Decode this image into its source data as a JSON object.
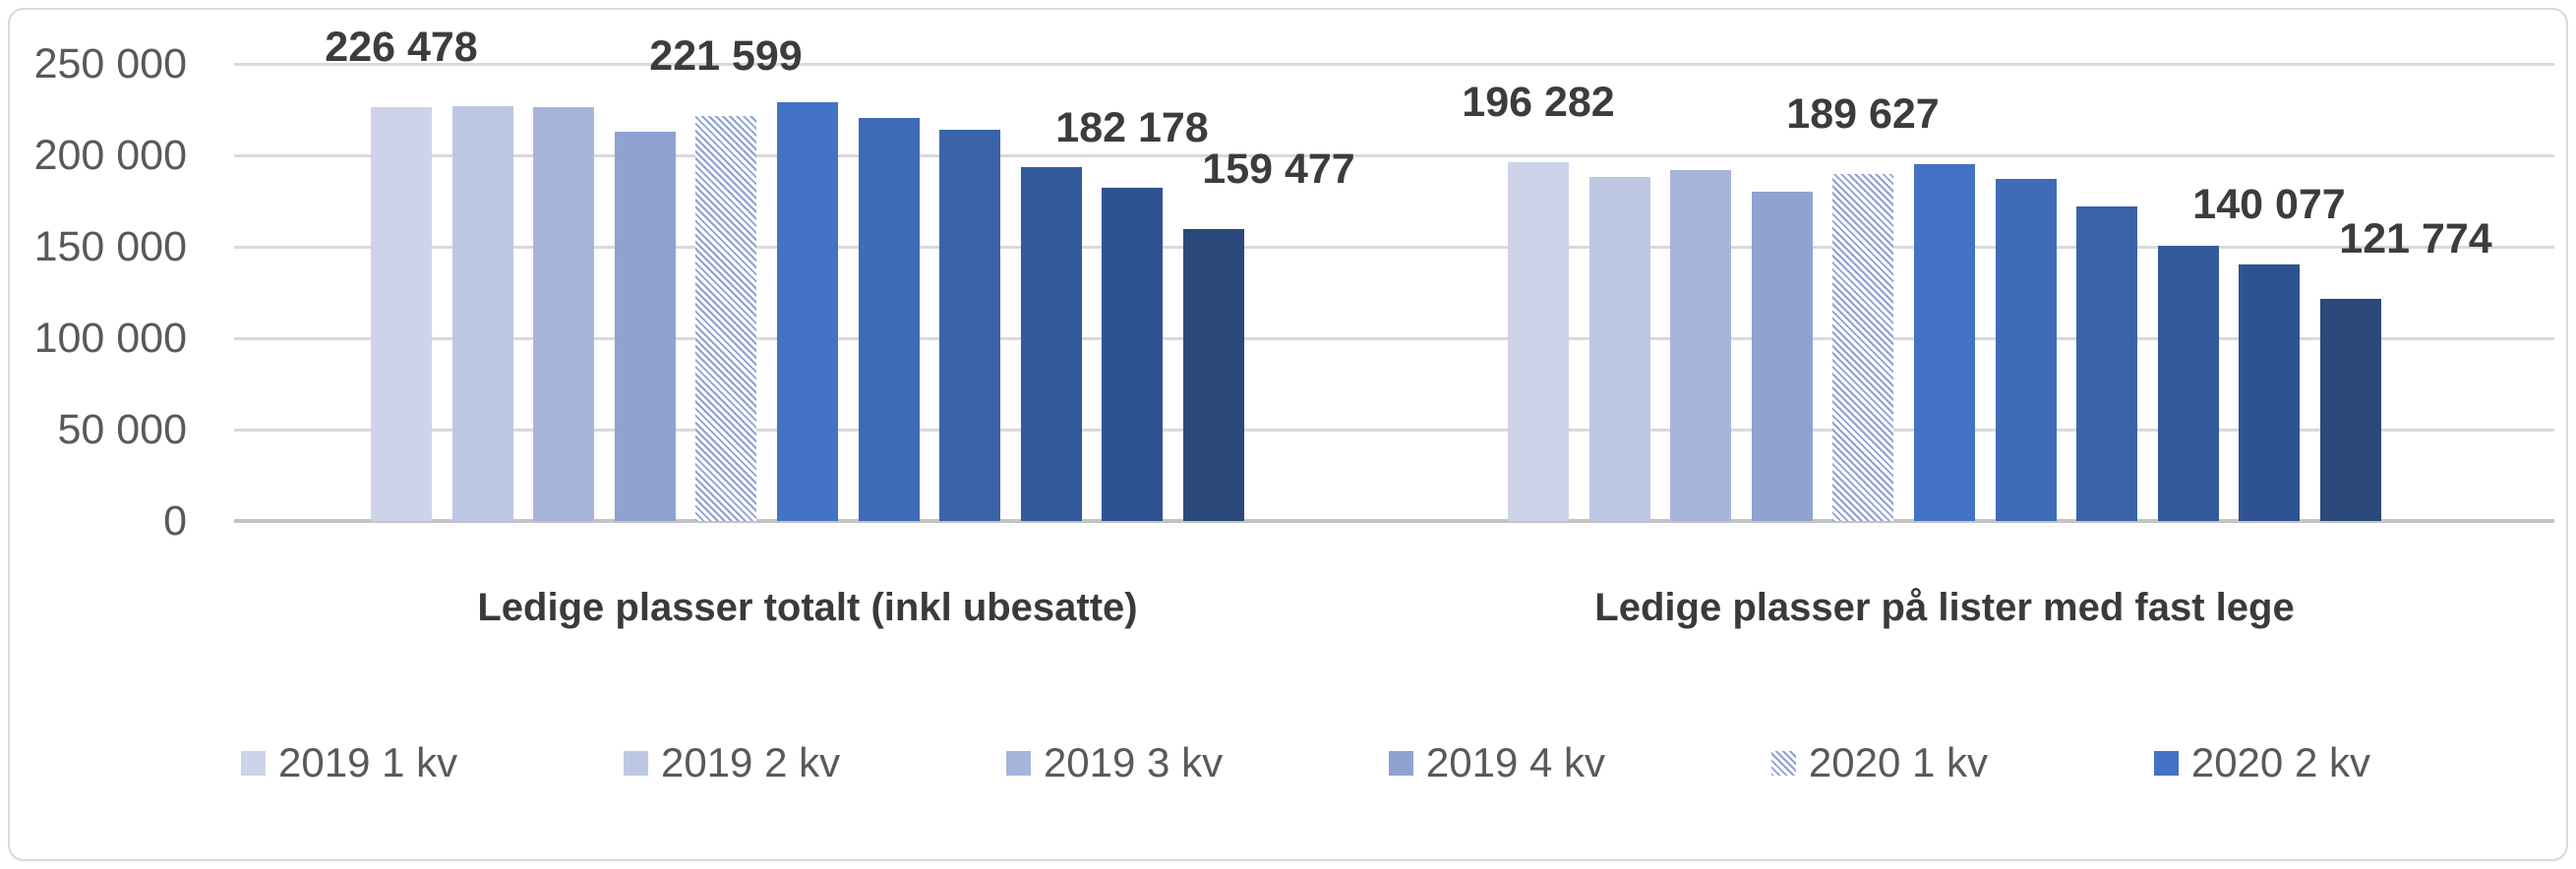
{
  "chart_style": {
    "background": "#FFFFFF",
    "border_color": "#D9D9D9",
    "grid_color": "#D9D9D9",
    "axis_line_color": "#C3C3C3",
    "axis_text_color": "#595959",
    "data_label_color": "#3C3C3C",
    "category_title_color": "#3A3A3A",
    "legend_text_color": "#595959",
    "hatch_background": "#FFFFFF"
  },
  "chart_data": {
    "type": "bar",
    "title": "",
    "xlabel": "",
    "ylabel": "",
    "ylim": [
      0,
      250000
    ],
    "grid": true,
    "y_axis": {
      "min": 0,
      "max": 250000,
      "tick_interval": 50000,
      "tick_values": [
        250000,
        200000,
        150000,
        100000,
        50000,
        0
      ],
      "tick_labels": [
        "250 000",
        "200 000",
        "150 000",
        "100 000",
        "50 000",
        "0"
      ]
    },
    "legend": {
      "position": "bottom",
      "entries": [
        {
          "label": "2019 1 kv",
          "color": "#CDD3E9",
          "pattern": "solid"
        },
        {
          "label": "2019 2 kv",
          "color": "#BDC7E4",
          "pattern": "solid"
        },
        {
          "label": "2019 3 kv",
          "color": "#A7B5DC",
          "pattern": "solid"
        },
        {
          "label": "2019 4 kv",
          "color": "#8FA2D2",
          "pattern": "solid"
        },
        {
          "label": "2020 1 kv",
          "color": "#8CA0D3",
          "pattern": "diagonal-hatch"
        },
        {
          "label": "2020 2 kv",
          "color": "#4472C4",
          "pattern": "solid"
        }
      ]
    },
    "series_styles": [
      {
        "fill": "#CDD3E9",
        "pattern": "solid"
      },
      {
        "fill": "#BDC7E4",
        "pattern": "solid"
      },
      {
        "fill": "#A7B5DC",
        "pattern": "solid"
      },
      {
        "fill": "#8FA2D2",
        "pattern": "solid"
      },
      {
        "fill": "#8CA0D3",
        "pattern": "diagonal-hatch"
      },
      {
        "fill": "#4472C4",
        "pattern": "solid"
      },
      {
        "fill": "#3F6BB7",
        "pattern": "solid"
      },
      {
        "fill": "#3A63AA",
        "pattern": "solid"
      },
      {
        "fill": "#345A9C",
        "pattern": "solid"
      },
      {
        "fill": "#2F5290",
        "pattern": "solid"
      },
      {
        "fill": "#2A4879",
        "pattern": "solid"
      }
    ],
    "groups": [
      {
        "category": "Ledige plasser totalt (inkl ubesatte)",
        "values": [
          226478,
          226900,
          226100,
          213000,
          221599,
          228800,
          220400,
          213800,
          193400,
          182178,
          159477
        ],
        "data_labels": [
          {
            "bar": 0,
            "text": "226 478"
          },
          {
            "bar": 4,
            "text": "221 599"
          },
          {
            "bar": 9,
            "text": "182 178"
          },
          {
            "bar": 10,
            "text": "159 477"
          }
        ]
      },
      {
        "category": "Ledige plasser på lister med fast lege",
        "values": [
          196282,
          188400,
          192200,
          180300,
          189627,
          195100,
          187200,
          171800,
          150600,
          140077,
          121774
        ],
        "data_labels": [
          {
            "bar": 0,
            "text": "196 282"
          },
          {
            "bar": 4,
            "text": "189 627"
          },
          {
            "bar": 9,
            "text": "140 077"
          },
          {
            "bar": 10,
            "text": "121 774"
          }
        ]
      }
    ]
  }
}
